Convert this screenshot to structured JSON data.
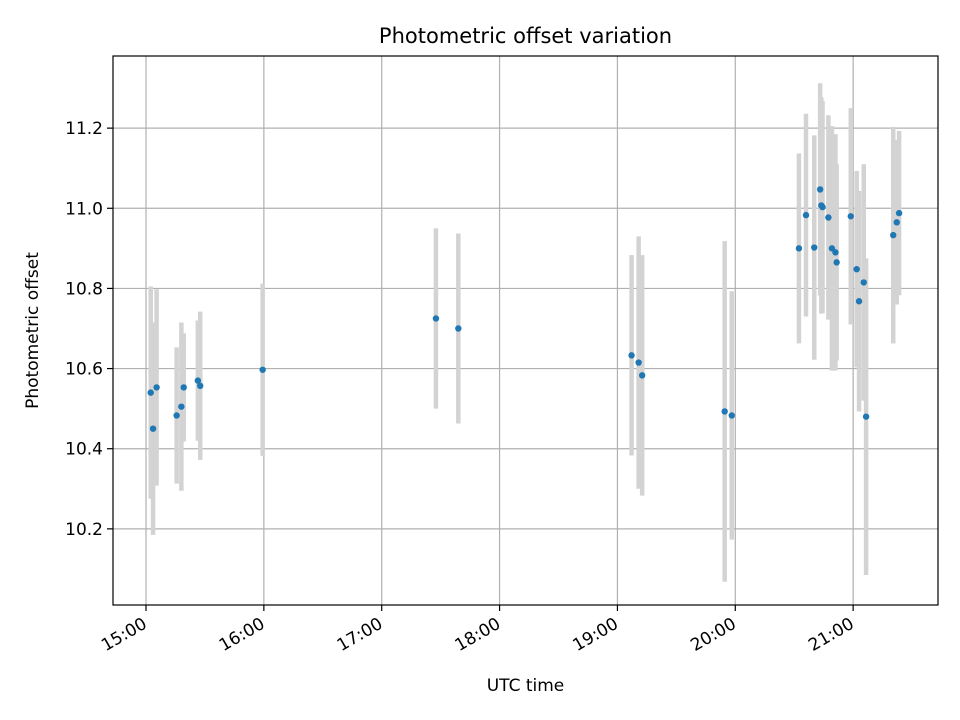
{
  "chart_data": {
    "type": "scatter",
    "title": "Photometric offset variation",
    "xlabel": "UTC time",
    "ylabel": "Photometric offset",
    "x_unit": "UTC hours",
    "xlim": [
      14.72,
      21.72
    ],
    "ylim": [
      10.01,
      11.38
    ],
    "grid": true,
    "point_color": "#1f77b4",
    "errorbar_color": "#d3d3d3",
    "x_ticks": [
      {
        "value": 15,
        "label": "15:00"
      },
      {
        "value": 16,
        "label": "16:00"
      },
      {
        "value": 17,
        "label": "17:00"
      },
      {
        "value": 18,
        "label": "18:00"
      },
      {
        "value": 19,
        "label": "19:00"
      },
      {
        "value": 20,
        "label": "20:00"
      },
      {
        "value": 21,
        "label": "21:00"
      }
    ],
    "y_ticks": [
      {
        "value": 10.2,
        "label": "10.2"
      },
      {
        "value": 10.4,
        "label": "10.4"
      },
      {
        "value": 10.6,
        "label": "10.6"
      },
      {
        "value": 10.8,
        "label": "10.8"
      },
      {
        "value": 11.0,
        "label": "11.0"
      },
      {
        "value": 11.2,
        "label": "11.2"
      }
    ],
    "points": [
      {
        "x": 15.04,
        "y": 10.54,
        "err": 0.265
      },
      {
        "x": 15.06,
        "y": 10.45,
        "err": 0.265
      },
      {
        "x": 15.09,
        "y": 10.553,
        "err": 0.245
      },
      {
        "x": 15.26,
        "y": 10.483,
        "err": 0.17
      },
      {
        "x": 15.3,
        "y": 10.505,
        "err": 0.21
      },
      {
        "x": 15.32,
        "y": 10.553,
        "err": 0.135
      },
      {
        "x": 15.44,
        "y": 10.57,
        "err": 0.15
      },
      {
        "x": 15.46,
        "y": 10.557,
        "err": 0.185
      },
      {
        "x": 15.99,
        "y": 10.597,
        "err": 0.215
      },
      {
        "x": 17.46,
        "y": 10.725,
        "err": 0.225
      },
      {
        "x": 17.65,
        "y": 10.7,
        "err": 0.237
      },
      {
        "x": 19.12,
        "y": 10.633,
        "err": 0.25
      },
      {
        "x": 19.18,
        "y": 10.615,
        "err": 0.315
      },
      {
        "x": 19.21,
        "y": 10.583,
        "err": 0.3
      },
      {
        "x": 19.91,
        "y": 10.493,
        "err": 0.425
      },
      {
        "x": 19.97,
        "y": 10.483,
        "err": 0.31
      },
      {
        "x": 20.54,
        "y": 10.9,
        "err": 0.237
      },
      {
        "x": 20.6,
        "y": 10.983,
        "err": 0.253
      },
      {
        "x": 20.67,
        "y": 10.902,
        "err": 0.28
      },
      {
        "x": 20.72,
        "y": 11.047,
        "err": 0.265
      },
      {
        "x": 20.73,
        "y": 11.007,
        "err": 0.27
      },
      {
        "x": 20.74,
        "y": 11.003,
        "err": 0.265
      },
      {
        "x": 20.79,
        "y": 10.977,
        "err": 0.255
      },
      {
        "x": 20.82,
        "y": 10.9,
        "err": 0.305
      },
      {
        "x": 20.85,
        "y": 10.89,
        "err": 0.295
      },
      {
        "x": 20.86,
        "y": 10.865,
        "err": 0.245
      },
      {
        "x": 20.98,
        "y": 10.98,
        "err": 0.27
      },
      {
        "x": 21.03,
        "y": 10.848,
        "err": 0.245
      },
      {
        "x": 21.05,
        "y": 10.768,
        "err": 0.275
      },
      {
        "x": 21.09,
        "y": 10.815,
        "err": 0.295
      },
      {
        "x": 21.11,
        "y": 10.48,
        "err": 0.395
      },
      {
        "x": 21.34,
        "y": 10.933,
        "err": 0.27
      },
      {
        "x": 21.37,
        "y": 10.965,
        "err": 0.205
      },
      {
        "x": 21.39,
        "y": 10.988,
        "err": 0.205
      }
    ]
  }
}
